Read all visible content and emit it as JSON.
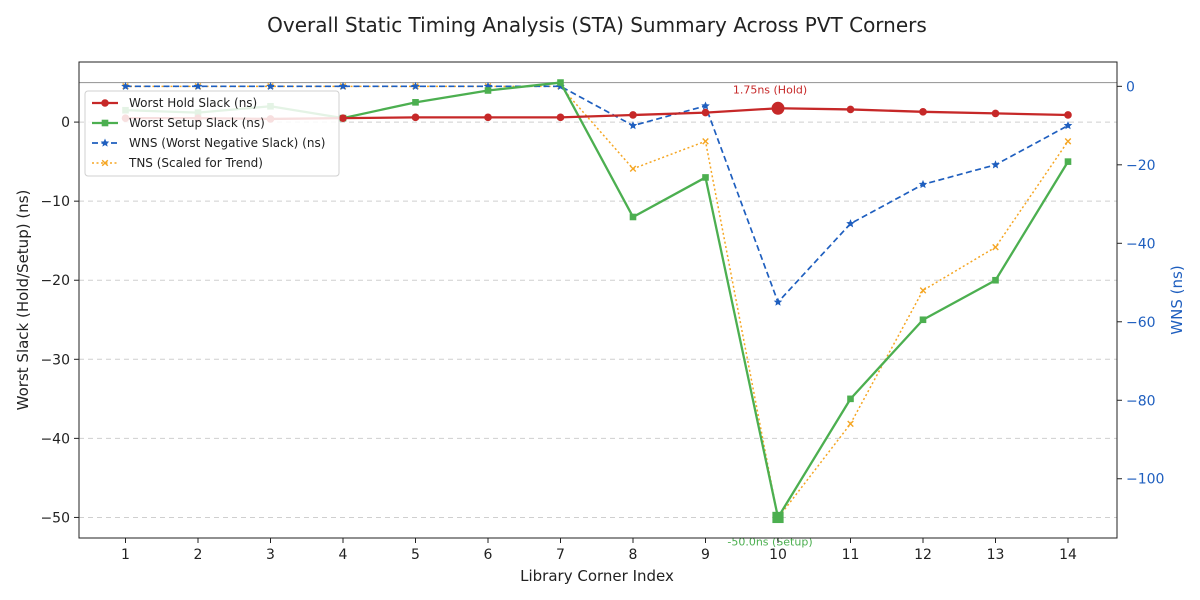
{
  "chart_data": {
    "type": "line",
    "title": "Overall Static Timing Analysis (STA) Summary Across PVT Corners",
    "xlabel": "Library Corner Index",
    "ylabel": "Worst Slack (Hold/Setup) (ns)",
    "y2label": "WNS (ns)",
    "x": [
      1,
      2,
      3,
      4,
      5,
      6,
      7,
      8,
      9,
      10,
      11,
      12,
      13,
      14
    ],
    "ylim": [
      -52.6,
      7.6
    ],
    "y2lim": [
      -115.1,
      6.2
    ],
    "yticks": [
      0,
      -10,
      -20,
      -30,
      -40,
      -50
    ],
    "y2ticks": [
      0,
      -20,
      -40,
      -60,
      -80,
      -100
    ],
    "reference_line_y": 5,
    "legend_position": "upper-left",
    "series": [
      {
        "name": "Worst Hold Slack (ns)",
        "axis": "left",
        "color": "#c62828",
        "style": "solid",
        "marker": "circle",
        "values": [
          0.5,
          0.5,
          0.4,
          0.5,
          0.6,
          0.6,
          0.6,
          0.9,
          1.2,
          1.75,
          1.6,
          1.3,
          1.1,
          0.9
        ]
      },
      {
        "name": "Worst Setup Slack (ns)",
        "axis": "left",
        "color": "#4caf50",
        "style": "solid",
        "marker": "square",
        "values": [
          1.5,
          1.2,
          2.0,
          0.5,
          2.5,
          4.0,
          5.0,
          -12,
          -7,
          -50,
          -35,
          -25,
          -20,
          -5
        ]
      },
      {
        "name": "WNS (Worst Negative Slack) (ns)",
        "axis": "right",
        "color": "#1f5fbf",
        "style": "dashed",
        "marker": "star",
        "values": [
          0,
          0,
          0,
          0,
          0,
          0,
          0,
          -10,
          -5,
          -55,
          -35,
          -25,
          -20,
          -10
        ]
      },
      {
        "name": "TNS (Scaled for Trend)",
        "axis": "right",
        "color": "#f5a623",
        "style": "dotted",
        "marker": "x",
        "values": [
          0,
          0,
          0,
          0,
          0,
          0,
          0,
          -21,
          -14,
          -110,
          -86,
          -52,
          -41,
          -14
        ]
      }
    ],
    "annotations": [
      {
        "text": "1.75ns (Hold)",
        "x": 10,
        "y": 1.75,
        "series": 0
      },
      {
        "text": "-50.0ns (Setup)",
        "x": 10,
        "y": -50,
        "series": 1
      }
    ]
  }
}
